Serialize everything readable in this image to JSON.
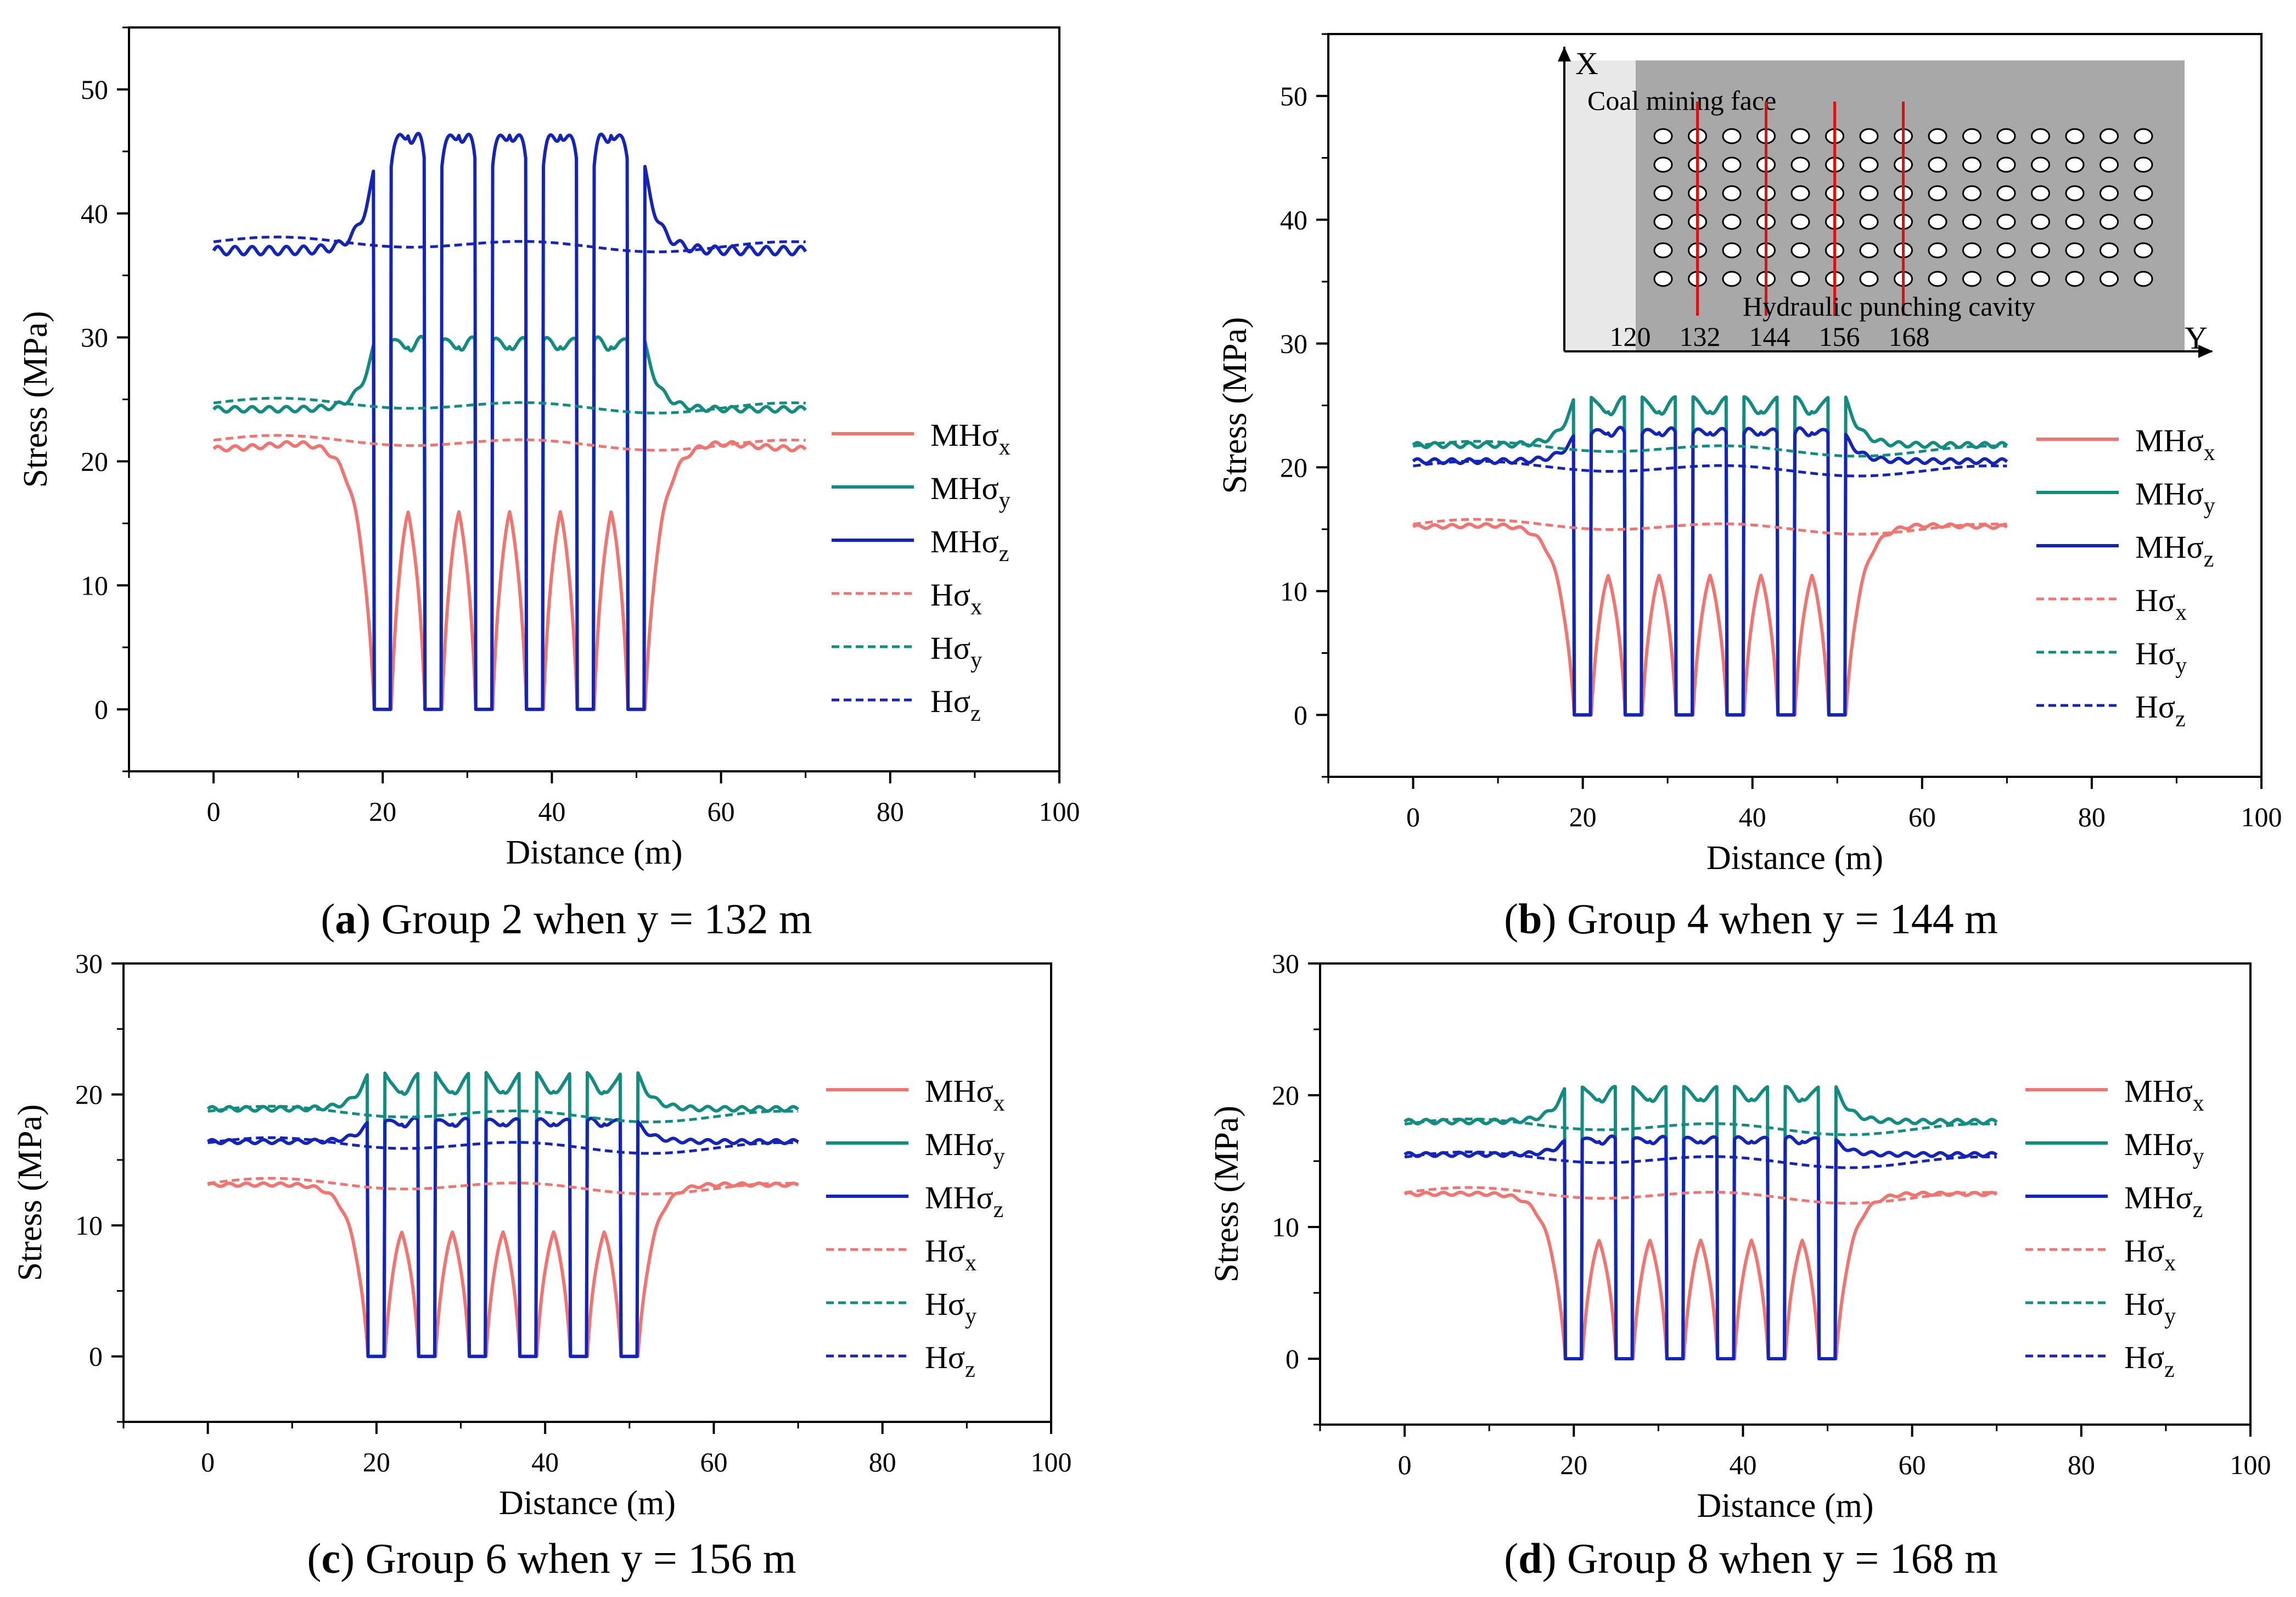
{
  "chart_data": [
    {
      "type": "line",
      "panel": "a",
      "caption": {
        "letter": "a",
        "text": " Group 2 when y = 132 m"
      },
      "xlabel": "Distance (m)",
      "ylabel": "Stress (MPa)",
      "xlim": [
        -10,
        100
      ],
      "ylim": [
        -5,
        55
      ],
      "xticks": [
        0,
        20,
        40,
        60,
        80,
        100
      ],
      "yticks": [
        0,
        10,
        20,
        30,
        40,
        50
      ],
      "cavity_centers": [
        20,
        26,
        32,
        38,
        44,
        50
      ],
      "series": [
        {
          "name": "MHσx",
          "base": "MHσ",
          "sub": "x",
          "style": "solid",
          "color": "#f07470",
          "profile": "x",
          "far": 21,
          "peak": 22.0,
          "mid": 18.8
        },
        {
          "name": "MHσy",
          "base": "MHσ",
          "sub": "y",
          "style": "solid",
          "color": "#128c80",
          "profile": "yz",
          "far": 24.2,
          "peak": 29.5,
          "mid": 30.5
        },
        {
          "name": "MHσz",
          "base": "MHσ",
          "sub": "z",
          "style": "solid",
          "color": "#1424b8",
          "profile": "yz",
          "far": 37,
          "peak": 43.5,
          "mid": 48.5
        },
        {
          "name": "Hσx",
          "base": "Hσ",
          "sub": "x",
          "style": "dashed",
          "color": "#f07470",
          "value": 21.5
        },
        {
          "name": "Hσy",
          "base": "Hσ",
          "sub": "y",
          "style": "dashed",
          "color": "#128c80",
          "value": 24.5
        },
        {
          "name": "Hσz",
          "base": "Hσ",
          "sub": "z",
          "style": "dashed",
          "color": "#1424b8",
          "value": 37.5
        }
      ]
    },
    {
      "type": "line",
      "panel": "b",
      "caption": {
        "letter": "b",
        "text": " Group 4 when y = 144 m"
      },
      "xlabel": "Distance (m)",
      "ylabel": "Stress (MPa)",
      "xlim": [
        -10,
        100
      ],
      "ylim": [
        -5,
        55
      ],
      "xticks": [
        0,
        20,
        40,
        60,
        80,
        100
      ],
      "yticks": [
        0,
        10,
        20,
        30,
        40,
        50
      ],
      "cavity_centers": [
        20,
        26,
        32,
        38,
        44,
        50
      ],
      "series": [
        {
          "name": "MHσx",
          "base": "MHσ",
          "sub": "x",
          "style": "solid",
          "color": "#f07470",
          "profile": "x",
          "far": 15.2,
          "peak": 15.5,
          "mid": 13.3
        },
        {
          "name": "MHσy",
          "base": "MHσ",
          "sub": "y",
          "style": "solid",
          "color": "#128c80",
          "profile": "yz",
          "far": 21.8,
          "peak": 25.5,
          "mid": 25.5
        },
        {
          "name": "MHσz",
          "base": "MHσ",
          "sub": "z",
          "style": "solid",
          "color": "#1424b8",
          "profile": "yz",
          "far": 20.5,
          "peak": 22.5,
          "mid": 23.8
        },
        {
          "name": "Hσx",
          "base": "Hσ",
          "sub": "x",
          "style": "dashed",
          "color": "#f07470",
          "value": 15.2
        },
        {
          "name": "Hσy",
          "base": "Hσ",
          "sub": "y",
          "style": "dashed",
          "color": "#128c80",
          "value": 21.5
        },
        {
          "name": "Hσz",
          "base": "Hσ",
          "sub": "z",
          "style": "dashed",
          "color": "#1424b8",
          "value": 19.9
        }
      ],
      "inset": {
        "x_axis_label": "X",
        "y_axis_label": "Y",
        "face_label": "Coal mining face",
        "cavity_label": "Hydraulic punching cavity",
        "y_ticks": [
          "120",
          "132",
          "144",
          "156",
          "168"
        ],
        "rows": 6,
        "cols": 15,
        "red_line_columns": [
          1,
          3,
          5,
          7
        ]
      }
    },
    {
      "type": "line",
      "panel": "c",
      "caption": {
        "letter": "c",
        "text": " Group 6 when y = 156 m"
      },
      "xlabel": "Distance (m)",
      "ylabel": "Stress (MPa)",
      "xlim": [
        -10,
        100
      ],
      "ylim": [
        -5,
        30
      ],
      "xticks": [
        0,
        20,
        40,
        60,
        80,
        100
      ],
      "yticks": [
        0,
        10,
        20,
        30
      ],
      "cavity_centers": [
        20,
        26,
        32,
        38,
        44,
        50
      ],
      "series": [
        {
          "name": "MHσx",
          "base": "MHσ",
          "sub": "x",
          "style": "solid",
          "color": "#f07470",
          "profile": "x",
          "far": 13.1,
          "peak": 13.2,
          "mid": 11.2
        },
        {
          "name": "MHσy",
          "base": "MHσ",
          "sub": "y",
          "style": "solid",
          "color": "#128c80",
          "profile": "yz",
          "far": 18.9,
          "peak": 21.5,
          "mid": 21.0
        },
        {
          "name": "MHσz",
          "base": "MHσ",
          "sub": "z",
          "style": "solid",
          "color": "#1424b8",
          "profile": "yz",
          "far": 16.4,
          "peak": 17.8,
          "mid": 18.5
        },
        {
          "name": "Hσx",
          "base": "Hσ",
          "sub": "x",
          "style": "dashed",
          "color": "#f07470",
          "value": 13.0
        },
        {
          "name": "Hσy",
          "base": "Hσ",
          "sub": "y",
          "style": "dashed",
          "color": "#128c80",
          "value": 18.5
        },
        {
          "name": "Hσz",
          "base": "Hσ",
          "sub": "z",
          "style": "dashed",
          "color": "#1424b8",
          "value": 16.1
        }
      ]
    },
    {
      "type": "line",
      "panel": "d",
      "caption": {
        "letter": "d",
        "text": " Group 8 when y = 168 m"
      },
      "xlabel": "Distance (m)",
      "ylabel": "Stress (MPa)",
      "xlim": [
        -10,
        100
      ],
      "ylim": [
        -5,
        30
      ],
      "xticks": [
        0,
        20,
        40,
        60,
        80,
        100
      ],
      "yticks": [
        0,
        10,
        20,
        30
      ],
      "cavity_centers": [
        20,
        26,
        32,
        38,
        44,
        50
      ],
      "series": [
        {
          "name": "MHσx",
          "base": "MHσ",
          "sub": "x",
          "style": "solid",
          "color": "#f07470",
          "profile": "x",
          "far": 12.5,
          "peak": 12.6,
          "mid": 10.6
        },
        {
          "name": "MHσy",
          "base": "MHσ",
          "sub": "y",
          "style": "solid",
          "color": "#128c80",
          "profile": "yz",
          "far": 18.0,
          "peak": 20.5,
          "mid": 20.5
        },
        {
          "name": "MHσz",
          "base": "MHσ",
          "sub": "z",
          "style": "solid",
          "color": "#1424b8",
          "profile": "yz",
          "far": 15.5,
          "peak": 16.5,
          "mid": 17.2
        },
        {
          "name": "Hσx",
          "base": "Hσ",
          "sub": "x",
          "style": "dashed",
          "color": "#f07470",
          "value": 12.4
        },
        {
          "name": "Hσy",
          "base": "Hσ",
          "sub": "y",
          "style": "dashed",
          "color": "#128c80",
          "value": 17.6
        },
        {
          "name": "Hσz",
          "base": "Hσ",
          "sub": "z",
          "style": "dashed",
          "color": "#1424b8",
          "value": 15.1
        }
      ]
    }
  ]
}
